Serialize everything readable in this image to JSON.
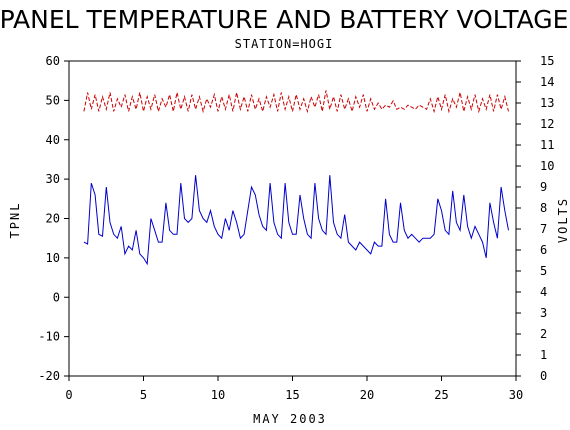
{
  "chart_data": {
    "type": "line",
    "title": "PANEL TEMPERATURE AND BATTERY VOLTAGE",
    "subtitle": "STATION=HOGI",
    "xlabel": "MAY 2003",
    "ylabel_left": "TPNL",
    "ylabel_right": "VOLTS",
    "xlim": [
      0,
      30
    ],
    "ylim_left": [
      -20,
      60
    ],
    "ylim_right": [
      0,
      15
    ],
    "xticks": [
      "0",
      "5",
      "10",
      "15",
      "20",
      "25",
      "30"
    ],
    "yticks_left": [
      "-20",
      "-10",
      "0",
      "10",
      "20",
      "30",
      "40",
      "50",
      "60"
    ],
    "yticks_right": [
      "0",
      "1",
      "2",
      "3",
      "4",
      "5",
      "6",
      "7",
      "8",
      "9",
      "10",
      "11",
      "12",
      "13",
      "14",
      "15"
    ],
    "grid": false,
    "series": [
      {
        "name": "TPNL",
        "axis": "left",
        "color": "#0000cc",
        "style": "solid",
        "x": [
          1.0,
          1.25,
          1.5,
          1.75,
          2.0,
          2.25,
          2.5,
          2.75,
          3.0,
          3.25,
          3.5,
          3.75,
          4.0,
          4.25,
          4.5,
          4.75,
          5.0,
          5.25,
          5.5,
          5.75,
          6.0,
          6.25,
          6.5,
          6.75,
          7.0,
          7.25,
          7.5,
          7.75,
          8.0,
          8.25,
          8.5,
          8.75,
          9.0,
          9.25,
          9.5,
          9.75,
          10.0,
          10.25,
          10.5,
          10.75,
          11.0,
          11.25,
          11.5,
          11.75,
          12.0,
          12.25,
          12.5,
          12.75,
          13.0,
          13.25,
          13.5,
          13.75,
          14.0,
          14.25,
          14.5,
          14.75,
          15.0,
          15.25,
          15.5,
          15.75,
          16.0,
          16.25,
          16.5,
          16.75,
          17.0,
          17.25,
          17.5,
          17.75,
          18.0,
          18.25,
          18.5,
          18.75,
          19.0,
          19.25,
          19.5,
          19.75,
          20.0,
          20.25,
          20.5,
          20.75,
          21.0,
          21.25,
          21.5,
          21.75,
          22.0,
          22.25,
          22.5,
          22.75,
          23.0,
          23.25,
          23.5,
          23.75,
          24.0,
          24.25,
          24.5,
          24.75,
          25.0,
          25.25,
          25.5,
          25.75,
          26.0,
          26.25,
          26.5,
          26.75,
          27.0,
          27.25,
          27.5,
          27.75,
          28.0,
          28.25,
          28.5,
          28.75,
          29.0,
          29.25,
          29.5
        ],
        "values": [
          14,
          13.5,
          29,
          26,
          16,
          15.5,
          28,
          19,
          16,
          15,
          18,
          11,
          13,
          12,
          17,
          11,
          10,
          8.5,
          20,
          17,
          14,
          14,
          24,
          17,
          16,
          16,
          29,
          20,
          19,
          20,
          31,
          22,
          20,
          19,
          22,
          18,
          16,
          15,
          20,
          17,
          22,
          19,
          15,
          16,
          22,
          28,
          26,
          21,
          18,
          17,
          29,
          19,
          16,
          15,
          29,
          19,
          16,
          16,
          26,
          20,
          16,
          15,
          29,
          20,
          17,
          16,
          31,
          19,
          16,
          15,
          21,
          14,
          13,
          12,
          14,
          13,
          12,
          11,
          14,
          13,
          13,
          25,
          16,
          14,
          14,
          24,
          17,
          15,
          16,
          15,
          14,
          15,
          15,
          15,
          16,
          25,
          22,
          17,
          16,
          27,
          19,
          17,
          26,
          18,
          15,
          18,
          16,
          14,
          10,
          24,
          19,
          15,
          28,
          22,
          17
        ]
      },
      {
        "name": "VOLTS",
        "axis": "right",
        "color": "#cc0000",
        "style": "dashed",
        "x": [
          1.0,
          1.25,
          1.5,
          1.75,
          2.0,
          2.25,
          2.5,
          2.75,
          3.0,
          3.25,
          3.5,
          3.75,
          4.0,
          4.25,
          4.5,
          4.75,
          5.0,
          5.25,
          5.5,
          5.75,
          6.0,
          6.25,
          6.5,
          6.75,
          7.0,
          7.25,
          7.5,
          7.75,
          8.0,
          8.25,
          8.5,
          8.75,
          9.0,
          9.25,
          9.5,
          9.75,
          10.0,
          10.25,
          10.5,
          10.75,
          11.0,
          11.25,
          11.5,
          11.75,
          12.0,
          12.25,
          12.5,
          12.75,
          13.0,
          13.25,
          13.5,
          13.75,
          14.0,
          14.25,
          14.5,
          14.75,
          15.0,
          15.25,
          15.5,
          15.75,
          16.0,
          16.25,
          16.5,
          16.75,
          17.0,
          17.25,
          17.5,
          17.75,
          18.0,
          18.25,
          18.5,
          18.75,
          19.0,
          19.25,
          19.5,
          19.75,
          20.0,
          20.25,
          20.5,
          20.75,
          21.0,
          21.25,
          21.5,
          21.75,
          22.0,
          22.25,
          22.5,
          22.75,
          23.0,
          23.25,
          23.5,
          23.75,
          24.0,
          24.25,
          24.5,
          24.75,
          25.0,
          25.25,
          25.5,
          25.75,
          26.0,
          26.25,
          26.5,
          26.75,
          27.0,
          27.25,
          27.5,
          27.75,
          28.0,
          28.25,
          28.5,
          28.75,
          29.0,
          29.25,
          29.5
        ],
        "values": [
          12.6,
          13.5,
          12.7,
          13.4,
          12.6,
          13.3,
          12.7,
          13.5,
          12.6,
          13.2,
          12.8,
          13.4,
          12.6,
          13.3,
          12.7,
          13.5,
          12.6,
          13.3,
          12.7,
          13.4,
          12.6,
          13.2,
          12.8,
          13.4,
          12.6,
          13.5,
          12.7,
          13.3,
          12.6,
          13.4,
          12.7,
          13.3,
          12.6,
          13.2,
          12.8,
          13.4,
          12.6,
          13.3,
          12.7,
          13.4,
          12.6,
          13.5,
          12.7,
          13.3,
          12.6,
          13.4,
          12.7,
          13.2,
          12.6,
          13.3,
          12.8,
          13.4,
          12.6,
          13.5,
          12.7,
          13.3,
          12.6,
          13.4,
          12.7,
          13.2,
          12.6,
          13.3,
          12.8,
          13.4,
          12.6,
          13.6,
          12.7,
          13.3,
          12.6,
          13.4,
          12.7,
          13.2,
          12.6,
          13.3,
          12.8,
          13.4,
          12.6,
          13.2,
          12.7,
          13.0,
          12.7,
          12.9,
          12.8,
          13.1,
          12.7,
          12.8,
          12.7,
          12.9,
          12.8,
          12.7,
          12.9,
          12.8,
          12.7,
          13.2,
          12.6,
          13.3,
          12.7,
          13.4,
          12.6,
          13.2,
          12.8,
          13.5,
          12.6,
          13.3,
          12.7,
          13.4,
          12.6,
          13.2,
          12.7,
          13.4,
          12.6,
          13.4,
          12.7,
          13.3,
          12.6
        ]
      }
    ]
  }
}
